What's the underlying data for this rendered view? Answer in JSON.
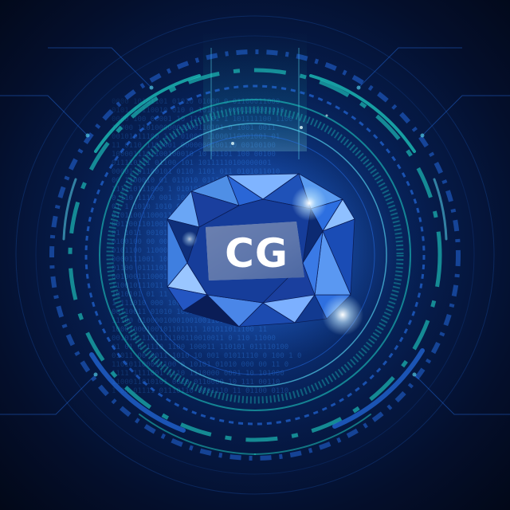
{
  "logo": {
    "text": "CG",
    "text_color": "#ffffff"
  },
  "palette": {
    "background_dark": "#040f2c",
    "background_mid": "#0b3a86",
    "ring_teal": "#1fd6c8",
    "ring_blue": "#2a7bff",
    "gem_light": "#7fb4ff",
    "gem_mid": "#2a66d6",
    "gem_dark": "#0a1d57",
    "binary_digits": "#2f7fe0"
  },
  "decor": {
    "background_icon": "binary-code-icon",
    "frame_icon": "circular-hud-icon",
    "emblem_icon": "diamond-gem-icon"
  }
}
